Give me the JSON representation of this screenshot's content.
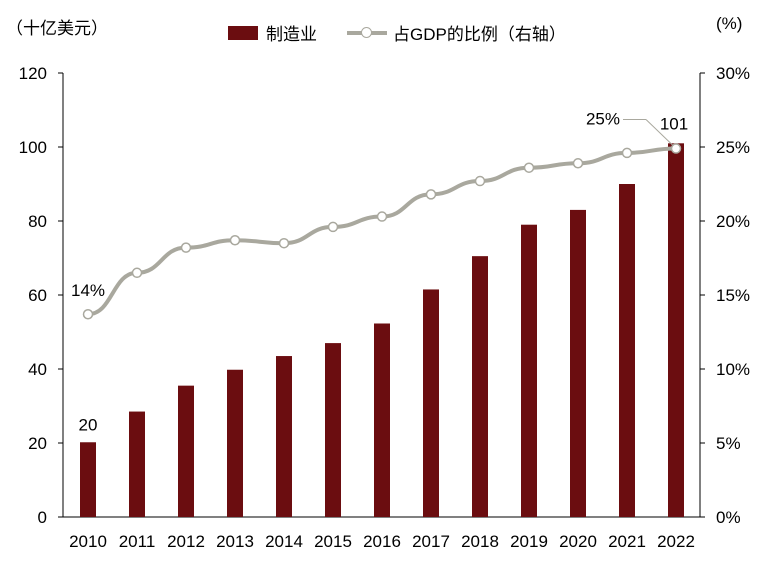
{
  "chart_data": {
    "type": "bar+line",
    "left_unit": "（十亿美元）",
    "right_unit": "(%)",
    "categories": [
      "2010",
      "2011",
      "2012",
      "2013",
      "2014",
      "2015",
      "2016",
      "2017",
      "2018",
      "2019",
      "2020",
      "2021",
      "2022"
    ],
    "series": [
      {
        "name": "制造业",
        "type": "bar",
        "axis": "left",
        "color": "#6b0d10",
        "values": [
          20.2,
          28.5,
          35.5,
          39.8,
          43.5,
          47.0,
          52.3,
          61.5,
          70.5,
          79.0,
          83.0,
          90.0,
          101
        ]
      },
      {
        "name": "占GDP的比例（右轴）",
        "type": "line",
        "axis": "right",
        "color": "#a9a89e",
        "values": [
          13.7,
          16.5,
          18.2,
          18.7,
          18.5,
          19.6,
          20.3,
          21.8,
          22.7,
          23.6,
          23.9,
          24.6,
          24.9
        ]
      }
    ],
    "y_left": {
      "min": 0,
      "max": 120,
      "ticks": [
        "0",
        "20",
        "40",
        "60",
        "80",
        "100",
        "120"
      ]
    },
    "y_right": {
      "min": 0,
      "max": 30,
      "ticks": [
        "0%",
        "5%",
        "10%",
        "15%",
        "20%",
        "25%",
        "30%"
      ]
    },
    "annotations": {
      "first_bar": "20",
      "last_bar": "101",
      "first_line": "14%",
      "last_line": "25%"
    },
    "grid": false,
    "legend": "top-center"
  }
}
